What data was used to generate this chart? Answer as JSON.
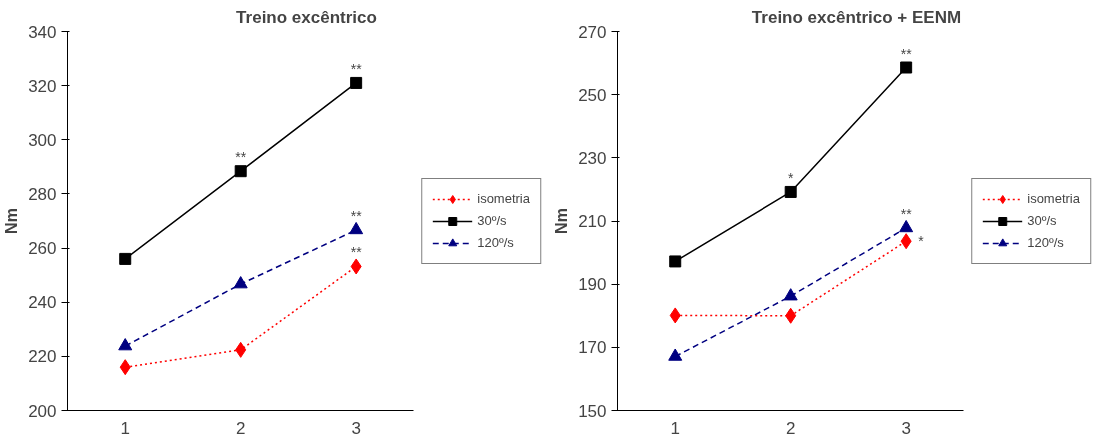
{
  "chart_data": [
    {
      "type": "line",
      "title": "Treino excêntrico",
      "ylabel": "Nm",
      "categories": [
        "1",
        "2",
        "3"
      ],
      "ylim": [
        200,
        340
      ],
      "yticks": [
        200,
        220,
        240,
        260,
        280,
        300,
        320,
        340
      ],
      "grid": false,
      "legend": "right",
      "series": [
        {
          "name": "isometria",
          "color": "#ff0000",
          "values": [
            216,
            222.4,
            253.2
          ],
          "marker": "diamond",
          "line_style": "dotted"
        },
        {
          "name": "30º/s",
          "color": "#000000",
          "values": [
            256,
            288.4,
            321
          ],
          "marker": "square",
          "line_style": "solid"
        },
        {
          "name": "120º/s",
          "color": "#000080",
          "values": [
            223.8,
            246.7,
            266.7
          ],
          "marker": "triangle",
          "line_style": "dashed"
        }
      ],
      "annotations": [
        {
          "text": "**",
          "x": "2",
          "y": 288.4
        },
        {
          "text": "**",
          "x": "3",
          "y": 321
        },
        {
          "text": "**",
          "x": "3",
          "y": 266.7
        },
        {
          "text": "**",
          "x": "3",
          "y": 253.2
        }
      ]
    },
    {
      "type": "line",
      "title": "Treino excêntrico + EENM",
      "ylabel": "Nm",
      "categories": [
        "1",
        "2",
        "3"
      ],
      "ylim": [
        150,
        270
      ],
      "yticks": [
        150,
        170,
        190,
        210,
        230,
        250,
        270
      ],
      "grid": false,
      "legend": "right",
      "series": [
        {
          "name": "isometria",
          "color": "#ff0000",
          "values": [
            180.1,
            180,
            203.6
          ],
          "marker": "diamond",
          "line_style": "dotted"
        },
        {
          "name": "30º/s",
          "color": "#000000",
          "values": [
            197.2,
            219.2,
            258.6
          ],
          "marker": "square",
          "line_style": "solid"
        },
        {
          "name": "120º/s",
          "color": "#000080",
          "values": [
            167.1,
            186.2,
            207.8
          ],
          "marker": "triangle",
          "line_style": "dashed"
        }
      ],
      "annotations": [
        {
          "text": "*",
          "x": "2",
          "y": 219.2
        },
        {
          "text": "**",
          "x": "3",
          "y": 258.6
        },
        {
          "text": "**",
          "x": "3",
          "y": 207.8
        },
        {
          "text": "*",
          "x": "3",
          "y": 203.6
        }
      ]
    }
  ]
}
